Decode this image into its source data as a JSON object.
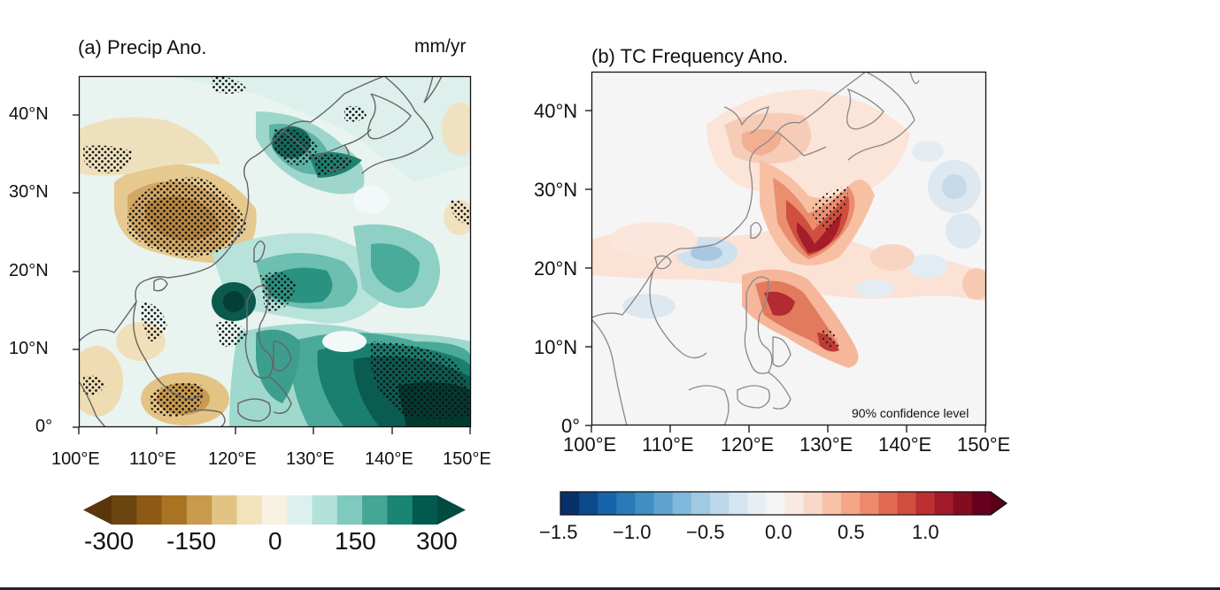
{
  "panel_a": {
    "title": "(a) Precip Ano.",
    "units": "mm/yr",
    "y_labels": [
      "40°N",
      "30°N",
      "20°N",
      "10°N",
      "0°"
    ],
    "x_labels": [
      "100°E",
      "110°E",
      "120°E",
      "130°E",
      "140°E",
      "150°E"
    ],
    "colorbar": {
      "colors": [
        "#6b4510",
        "#8c5a14",
        "#a87424",
        "#c79a4e",
        "#e2c384",
        "#f3e3bc",
        "#f7f1e2",
        "#dcf1ee",
        "#b3e2da",
        "#7fc9bd",
        "#46a696",
        "#1b8574",
        "#02594d"
      ],
      "left_arrow_color": "#5a360a",
      "right_arrow_color": "#024a40",
      "labels": [
        "-300",
        "-150",
        "0",
        "150",
        "300"
      ]
    }
  },
  "panel_b": {
    "title": "(b) TC Frequency Ano.",
    "annotation": "90% confidence level",
    "y_labels": [
      "40°N",
      "30°N",
      "20°N",
      "10°N",
      "0°"
    ],
    "x_labels": [
      "100°E",
      "110°E",
      "120°E",
      "130°E",
      "140°E",
      "150°E"
    ],
    "colorbar": {
      "colors": [
        "#08306b",
        "#0d4a8c",
        "#1764ab",
        "#2a7ab8",
        "#3f8ec4",
        "#5ea3cf",
        "#7fb8da",
        "#a0cae2",
        "#bcd8ea",
        "#d4e5f1",
        "#e7eff5",
        "#f5f5f5",
        "#f8eae2",
        "#fad8c7",
        "#f8c1a6",
        "#f4a687",
        "#ec8a6b",
        "#e06b52",
        "#d04e3e",
        "#bb2f30",
        "#a01a28",
        "#830c1f",
        "#67001f"
      ],
      "right_arrow_color": "#5a0018",
      "labels": [
        "−1.5",
        "−1.0",
        "−0.5",
        "0.0",
        "0.5",
        "1.0"
      ]
    }
  }
}
